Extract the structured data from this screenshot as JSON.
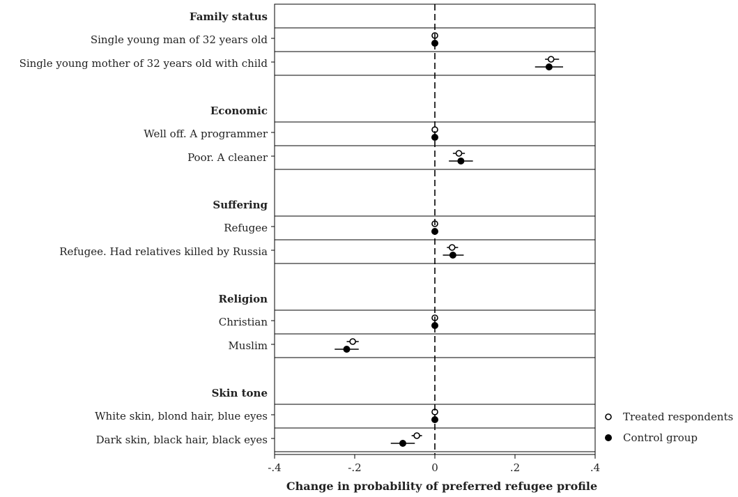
{
  "chart_data": {
    "type": "scatter",
    "xlabel": "Change in probability of preferred refugee profile",
    "xlim": [
      -0.4,
      0.4
    ],
    "xticks": [
      -0.4,
      -0.2,
      0,
      0.2,
      0.4
    ],
    "xtick_labels": [
      "-.4",
      "-.2",
      "0",
      ".2",
      ".4"
    ],
    "reference_line": 0,
    "series": [
      {
        "name": "Treated respondents",
        "marker": "hollow-circle"
      },
      {
        "name": "Control group",
        "marker": "filled-circle"
      }
    ],
    "groups": [
      {
        "label": "Family status",
        "rows": [
          {
            "label": "Single young man of 32 years old",
            "treated": {
              "est": 0,
              "lo": 0,
              "hi": 0
            },
            "control": {
              "est": 0,
              "lo": 0,
              "hi": 0
            }
          },
          {
            "label": "Single young mother of 32 years old with child",
            "treated": {
              "est": 0.29,
              "lo": 0.275,
              "hi": 0.31
            },
            "control": {
              "est": 0.285,
              "lo": 0.25,
              "hi": 0.32
            }
          }
        ]
      },
      {
        "label": "Economic",
        "rows": [
          {
            "label": "Well off. A programmer",
            "treated": {
              "est": 0,
              "lo": 0,
              "hi": 0
            },
            "control": {
              "est": 0,
              "lo": 0,
              "hi": 0
            }
          },
          {
            "label": "Poor. A cleaner",
            "treated": {
              "est": 0.06,
              "lo": 0.045,
              "hi": 0.075
            },
            "control": {
              "est": 0.065,
              "lo": 0.035,
              "hi": 0.095
            }
          }
        ]
      },
      {
        "label": "Suffering",
        "rows": [
          {
            "label": "Refugee",
            "treated": {
              "est": 0,
              "lo": 0,
              "hi": 0
            },
            "control": {
              "est": 0,
              "lo": 0,
              "hi": 0
            }
          },
          {
            "label": "Refugee. Had relatives killed by Russia",
            "treated": {
              "est": 0.043,
              "lo": 0.03,
              "hi": 0.058
            },
            "control": {
              "est": 0.045,
              "lo": 0.02,
              "hi": 0.072
            }
          }
        ]
      },
      {
        "label": "Religion",
        "rows": [
          {
            "label": "Christian",
            "treated": {
              "est": 0,
              "lo": 0,
              "hi": 0
            },
            "control": {
              "est": 0,
              "lo": 0,
              "hi": 0
            }
          },
          {
            "label": "Muslim",
            "treated": {
              "est": -0.205,
              "lo": -0.22,
              "hi": -0.19
            },
            "control": {
              "est": -0.22,
              "lo": -0.25,
              "hi": -0.19
            }
          }
        ]
      },
      {
        "label": "Skin tone",
        "rows": [
          {
            "label": "White skin, blond hair, blue eyes",
            "treated": {
              "est": 0,
              "lo": 0,
              "hi": 0
            },
            "control": {
              "est": 0,
              "lo": 0,
              "hi": 0
            }
          },
          {
            "label": "Dark skin, black hair, black eyes",
            "treated": {
              "est": -0.045,
              "lo": -0.058,
              "hi": -0.032
            },
            "control": {
              "est": -0.08,
              "lo": -0.11,
              "hi": -0.05
            }
          }
        ]
      }
    ]
  }
}
